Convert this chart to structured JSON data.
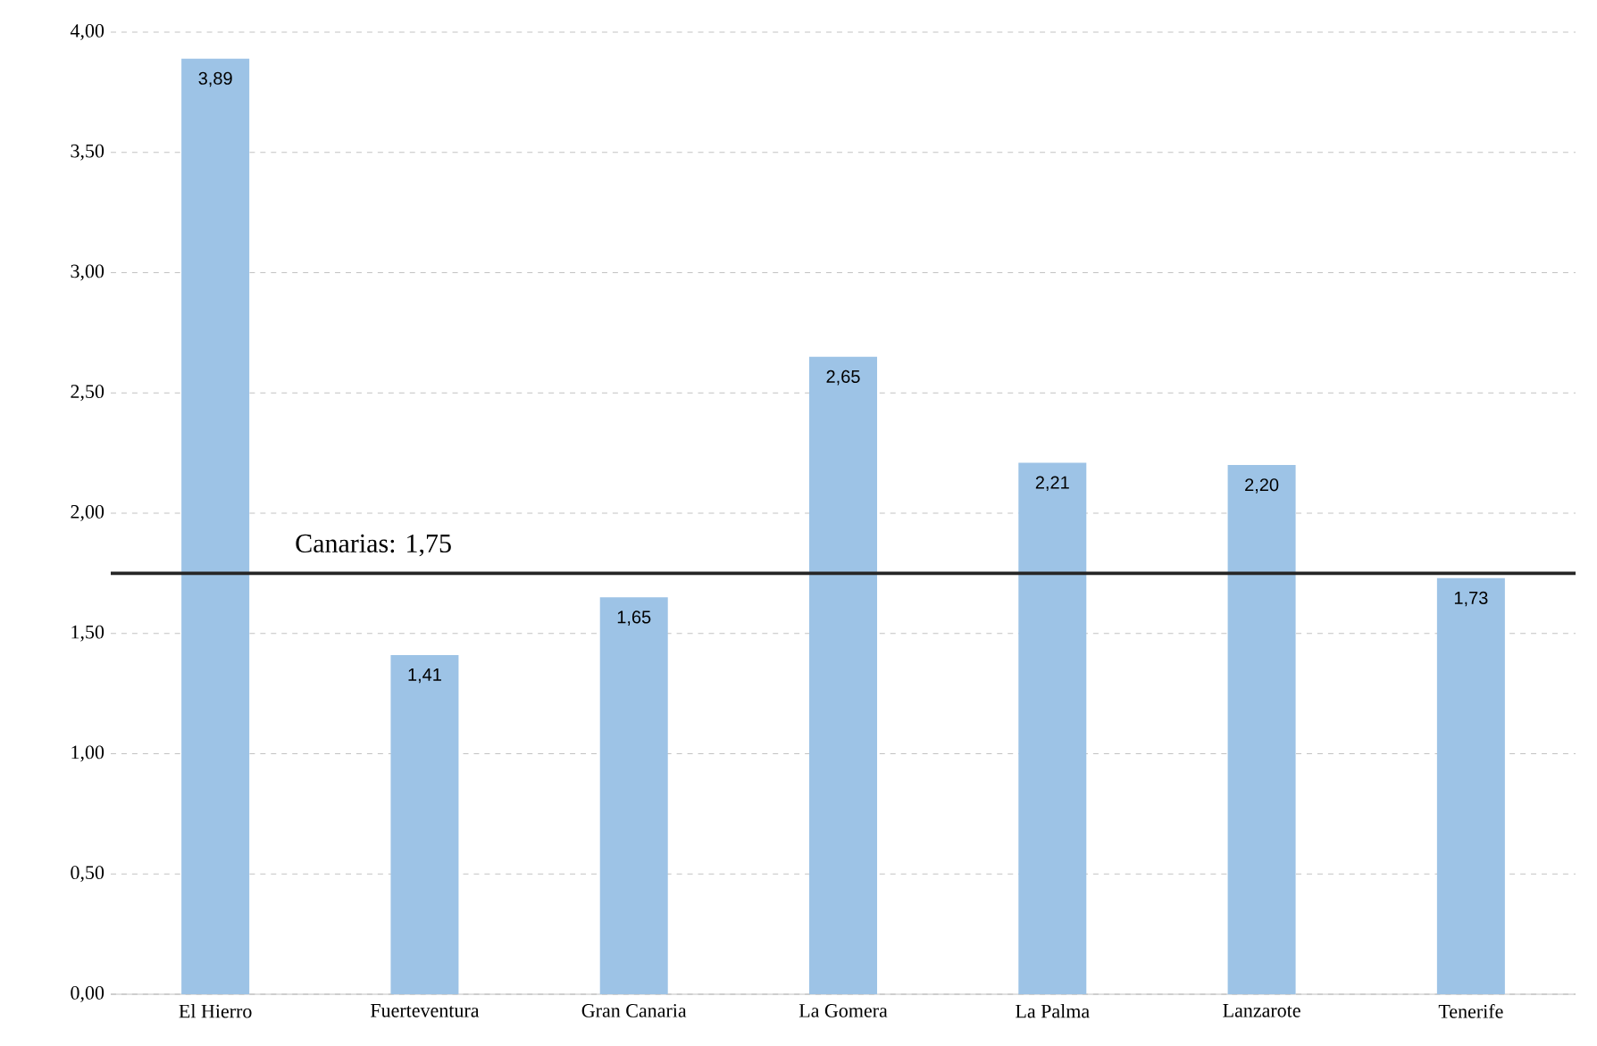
{
  "chart_data": {
    "type": "bar",
    "categories": [
      "El Hierro",
      "Fuerteventura",
      "Gran Canaria",
      "La Gomera",
      "La Palma",
      "Lanzarote",
      "Tenerife"
    ],
    "values": [
      3.89,
      1.41,
      1.65,
      2.65,
      2.21,
      2.2,
      1.73
    ],
    "value_labels": [
      "3,89",
      "1,41",
      "1,65",
      "2,65",
      "2,21",
      "2,20",
      "1,73"
    ],
    "color": "#9dc3e6",
    "ylim": [
      0,
      4
    ],
    "yticks": [
      {
        "value": 0,
        "label": "0,00"
      },
      {
        "value": 0.5,
        "label": "0,50"
      },
      {
        "value": 1,
        "label": "1,00"
      },
      {
        "value": 1.5,
        "label": "1,50"
      },
      {
        "value": 2,
        "label": "2,00"
      },
      {
        "value": 2.5,
        "label": "2,50"
      },
      {
        "value": 3,
        "label": "3,00"
      },
      {
        "value": 3.5,
        "label": "3,50"
      },
      {
        "value": 4,
        "label": "4,00"
      }
    ],
    "grid": "y",
    "ref_lines": [
      {
        "axis": "y",
        "value": 1.75,
        "label": "Canarias: 1,75",
        "color": "#262626"
      }
    ]
  }
}
